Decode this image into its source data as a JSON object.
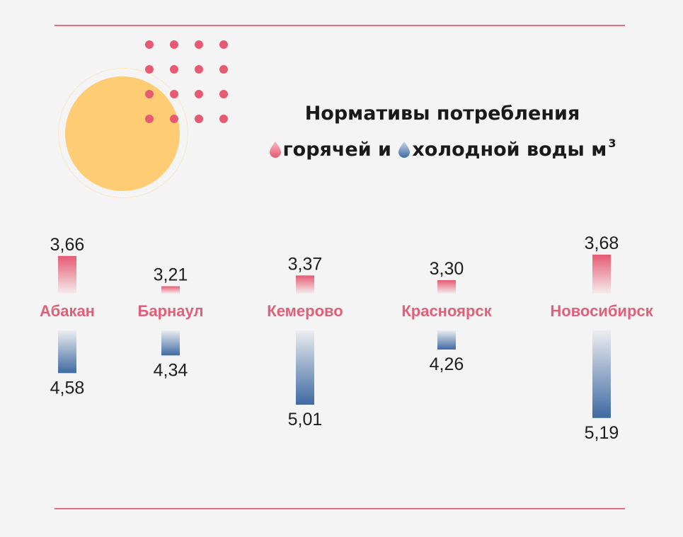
{
  "title": {
    "line1": "Нормативы потребления",
    "hot_word": "горячей и",
    "cold_word": "холодной воды м",
    "unit_exp": "3"
  },
  "colors": {
    "hot": "#e65a72",
    "cold": "#3f6aa3",
    "city": "#e0607a",
    "rule": "#e0707e",
    "sun": "#fdcc73"
  },
  "chart_data": {
    "type": "bar",
    "title": "Нормативы потребления горячей и холодной воды м³",
    "categories": [
      "Абакан",
      "Барнаул",
      "Кемерово",
      "Красноярск",
      "Новосибирск"
    ],
    "series": [
      {
        "name": "горячей",
        "values": [
          3.66,
          3.21,
          3.37,
          3.3,
          3.68
        ],
        "labels": [
          "3,66",
          "3,21",
          "3,37",
          "3,30",
          "3,68"
        ]
      },
      {
        "name": "холодной",
        "values": [
          4.58,
          4.34,
          5.01,
          4.26,
          5.19
        ],
        "labels": [
          "4,58",
          "4,34",
          "5,01",
          "4,26",
          "5,19"
        ]
      }
    ]
  }
}
